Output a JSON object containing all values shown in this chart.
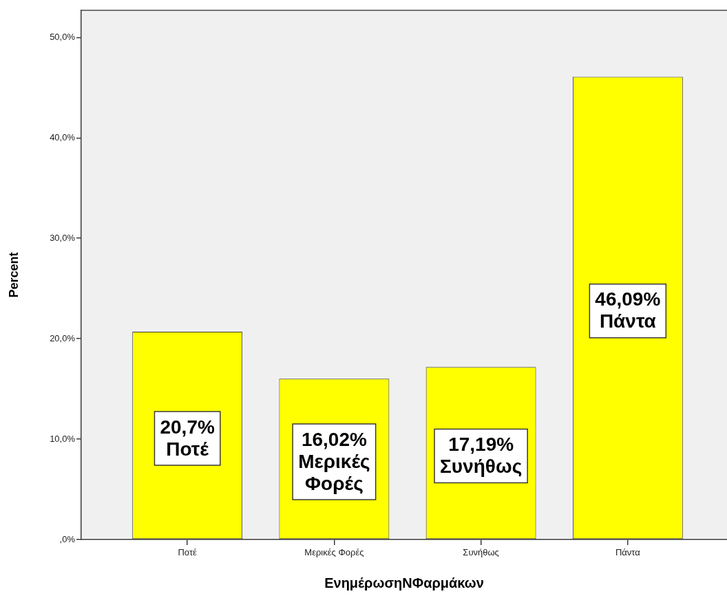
{
  "chart_data": {
    "type": "bar",
    "xlabel": "ΕνημέρωσηΝΦαρμάκων",
    "ylabel": "Percent",
    "categories": [
      "Ποτέ",
      "Μερικές Φορές",
      "Συνήθως",
      "Πάντα"
    ],
    "values": [
      20.7,
      16.02,
      17.19,
      46.09
    ],
    "color": "#ffff00",
    "value_labels": [
      "20,7% Ποτέ",
      "16,02% Μερικές Φορές",
      "17,19% Συνήθως",
      "46,09% Πάντα"
    ],
    "ylim": [
      0,
      52.7
    ],
    "yticks": [
      {
        "value": 0,
        "label": ",0%"
      },
      {
        "value": 10,
        "label": "10,0%"
      },
      {
        "value": 20,
        "label": "20,0%"
      },
      {
        "value": 30,
        "label": "30,0%"
      },
      {
        "value": 40,
        "label": "40,0%"
      },
      {
        "value": 50,
        "label": "50,0%"
      }
    ]
  }
}
